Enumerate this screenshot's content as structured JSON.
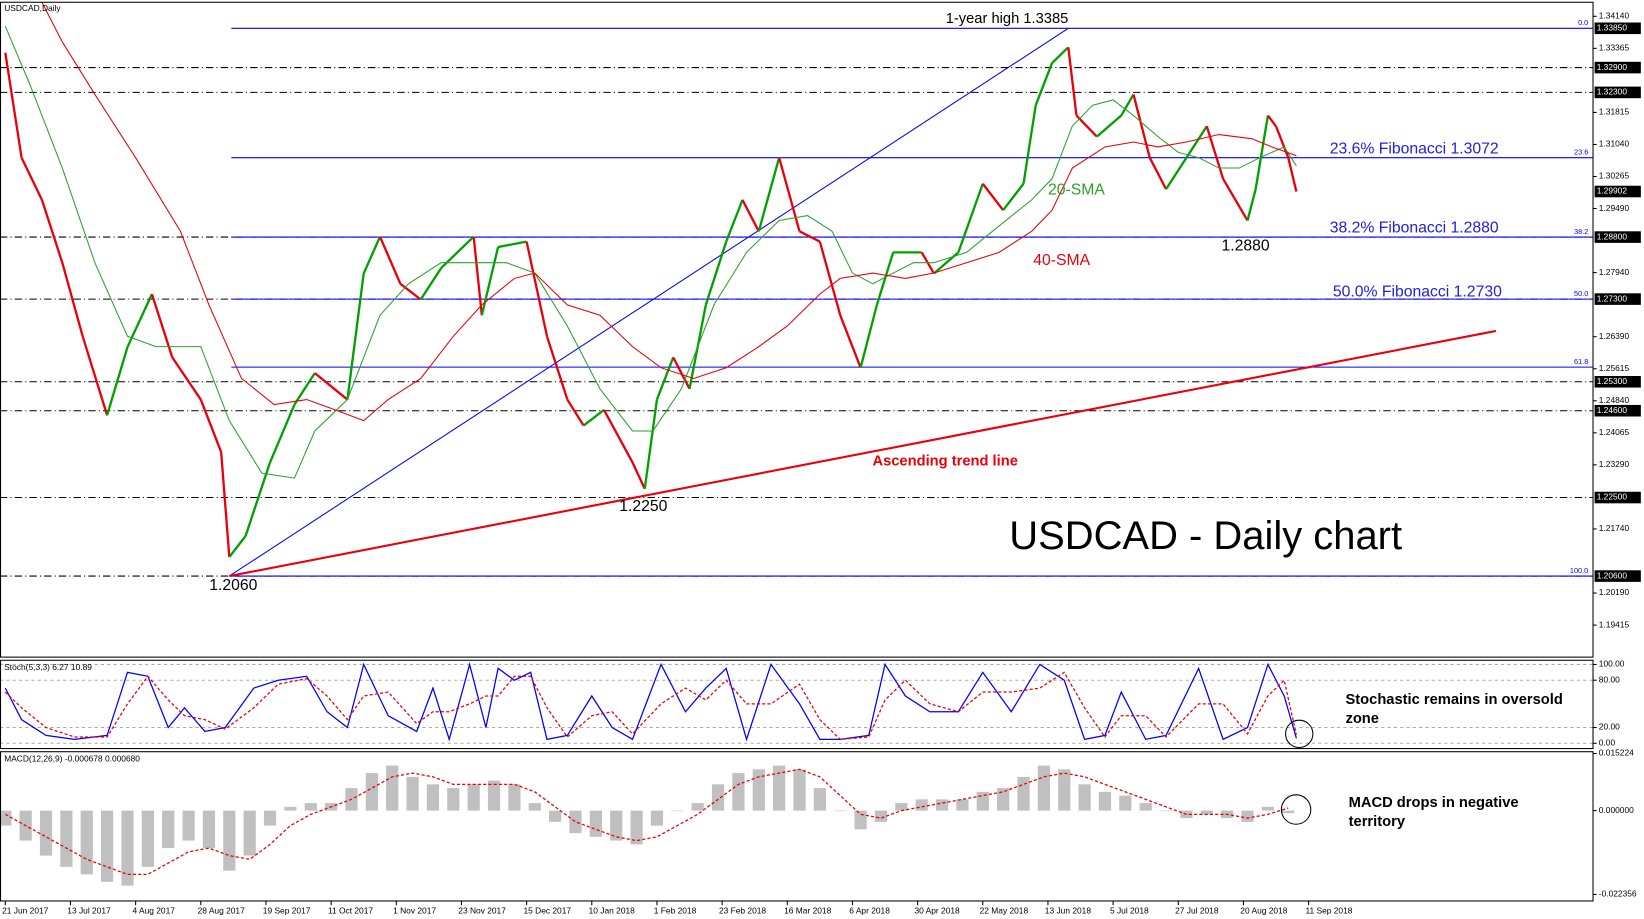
{
  "chart_data": [
    {
      "type": "price",
      "title": "USDCAD,Daily",
      "subtitle": "USDCAD - Daily chart",
      "xlim": [
        -1.3,
        389.7
      ],
      "ylim": [
        1.1864,
        1.3448
      ],
      "yticks": [
        {
          "value": 1.3414,
          "label": "1.34140"
        },
        {
          "value": 1.33365,
          "label": "1.33365"
        },
        {
          "value": 1.31815,
          "label": "1.31815"
        },
        {
          "value": 1.3104,
          "label": "1.31040"
        },
        {
          "value": 1.30265,
          "label": "1.30265"
        },
        {
          "value": 1.2949,
          "label": "1.29490"
        },
        {
          "value": 1.2794,
          "label": "1.27940"
        },
        {
          "value": 1.2639,
          "label": "1.26390"
        },
        {
          "value": 1.25615,
          "label": "1.25615"
        },
        {
          "value": 1.2484,
          "label": "1.24840"
        },
        {
          "value": 1.24065,
          "label": "1.24065"
        },
        {
          "value": 1.2329,
          "label": "1.23290"
        },
        {
          "value": 1.2174,
          "label": "1.21740"
        },
        {
          "value": 1.2019,
          "label": "1.20190"
        },
        {
          "value": 1.19415,
          "label": "1.19415"
        }
      ],
      "levels": [
        {
          "value": 1.3385,
          "label": "1.33850",
          "dashed": false
        },
        {
          "value": 1.329,
          "label": "1.32900",
          "dashed": true
        },
        {
          "value": 1.323,
          "label": "1.32300",
          "dashed": true
        },
        {
          "value": 1.29902,
          "label": "1.29902",
          "dashed": false
        },
        {
          "value": 1.288,
          "label": "1.28800",
          "dashed": true
        },
        {
          "value": 1.273,
          "label": "1.27300",
          "dashed": true
        },
        {
          "value": 1.253,
          "label": "1.25300",
          "dashed": true
        },
        {
          "value": 1.246,
          "label": "1.24600",
          "dashed": true
        },
        {
          "value": 1.225,
          "label": "1.22500",
          "dashed": true
        },
        {
          "value": 1.206,
          "label": "1.20600",
          "dashed": true
        }
      ],
      "fib": {
        "start": 55.5,
        "color": "#0000ff",
        "levels": [
          {
            "value": 1.3385,
            "label": "0.0"
          },
          {
            "value": 1.3072,
            "label": "23.6"
          },
          {
            "value": 1.288,
            "label": "38.2"
          },
          {
            "value": 1.273,
            "label": "50.0"
          },
          {
            "value": 1.25655,
            "label": "61.8"
          },
          {
            "value": 1.206,
            "label": "100.0"
          }
        ]
      },
      "lines": [
        {
          "color": "#0000ff",
          "x": [
            55,
            261
          ],
          "values": [
            1.206,
            1.3385
          ]
        },
        {
          "color": "#e8000b",
          "x": [
            55,
            366
          ],
          "values": [
            1.206,
            1.2653
          ]
        }
      ],
      "up_color": "#00a000",
      "down_color": "#e8000b",
      "x": [
        0,
        4,
        9,
        14,
        19,
        25,
        30,
        36,
        41,
        48,
        53,
        55,
        59,
        65,
        71,
        76,
        84,
        88,
        92,
        97,
        102,
        107,
        115,
        117,
        121,
        128,
        133,
        138,
        142,
        147,
        154,
        157,
        160,
        164,
        168,
        172,
        177,
        181,
        185,
        190,
        195,
        200,
        205,
        210,
        214,
        218,
        225,
        228,
        234,
        240,
        245,
        250,
        253,
        257,
        261,
        263,
        268,
        274,
        277,
        281,
        285,
        290,
        295,
        299,
        305,
        307,
        310,
        312,
        315,
        317
      ],
      "values": [
        1.3326,
        1.3072,
        1.297,
        1.2818,
        1.264,
        1.2449,
        1.2614,
        1.2742,
        1.2589,
        1.2487,
        1.236,
        1.2106,
        1.2157,
        1.2335,
        1.2475,
        1.2551,
        1.2487,
        1.2792,
        1.2881,
        1.2767,
        1.2729,
        1.2805,
        1.2881,
        1.2691,
        1.2856,
        1.2869,
        1.264,
        1.2487,
        1.2424,
        1.2462,
        1.2335,
        1.2271,
        1.2487,
        1.2589,
        1.2513,
        1.2716,
        1.2869,
        1.297,
        1.2894,
        1.3072,
        1.2894,
        1.2869,
        1.2691,
        1.2564,
        1.2716,
        1.2843,
        1.2843,
        1.2792,
        1.2843,
        1.3009,
        1.2945,
        1.3009,
        1.3199,
        1.3301,
        1.3339,
        1.3174,
        1.3123,
        1.3174,
        1.3225,
        1.3072,
        1.2996,
        1.3072,
        1.3148,
        1.3021,
        1.292,
        1.2996,
        1.3174,
        1.3148,
        1.3072,
        1.299
      ],
      "series": [
        {
          "name": "20-SMA",
          "color": "#2ca02c",
          "x": [
            0,
            6,
            14,
            22,
            30,
            37,
            48,
            55,
            63,
            71,
            76,
            84,
            92,
            99,
            107,
            115,
            123,
            130,
            138,
            146,
            154,
            159,
            166,
            174,
            182,
            190,
            197,
            203,
            208,
            213,
            218,
            223,
            228,
            236,
            244,
            252,
            257,
            262,
            267,
            272,
            277,
            283,
            288,
            293,
            298,
            303,
            308,
            314,
            317
          ],
          "values": [
            1.339,
            1.325,
            1.3047,
            1.2818,
            1.264,
            1.2615,
            1.2615,
            1.2436,
            1.2309,
            1.2297,
            1.2411,
            1.2487,
            1.2691,
            1.2767,
            1.2818,
            1.2818,
            1.2818,
            1.2793,
            1.2665,
            1.2513,
            1.2411,
            1.2411,
            1.2513,
            1.2716,
            1.2843,
            1.292,
            1.2932,
            1.2894,
            1.2793,
            1.2767,
            1.2793,
            1.2818,
            1.2818,
            1.2843,
            1.2907,
            1.297,
            1.3021,
            1.3149,
            1.3199,
            1.3212,
            1.3174,
            1.3123,
            1.3085,
            1.3072,
            1.3047,
            1.3047,
            1.3072,
            1.3098,
            1.3052
          ]
        },
        {
          "name": "40-SMA",
          "color": "#e8000b",
          "x": [
            9,
            14,
            22,
            32,
            43,
            50,
            58,
            66,
            74,
            81,
            88,
            94,
            102,
            110,
            117,
            125,
            130,
            138,
            146,
            154,
            161,
            169,
            177,
            185,
            192,
            200,
            205,
            213,
            221,
            228,
            236,
            244,
            252,
            257,
            262,
            270,
            277,
            283,
            290,
            298,
            306,
            311,
            317
          ],
          "values": [
            1.3448,
            1.3352,
            1.3225,
            1.3072,
            1.2894,
            1.2716,
            1.2538,
            1.2475,
            1.2487,
            1.2462,
            1.2436,
            1.2487,
            1.2538,
            1.264,
            1.2716,
            1.278,
            1.2793,
            1.2716,
            1.2691,
            1.2615,
            1.2564,
            1.2538,
            1.2564,
            1.2615,
            1.2665,
            1.2742,
            1.278,
            1.2793,
            1.278,
            1.2793,
            1.2818,
            1.2843,
            1.2894,
            1.2945,
            1.3047,
            1.3098,
            1.311,
            1.3098,
            1.311,
            1.3128,
            1.3118,
            1.3098,
            1.3077
          ]
        }
      ],
      "annotations": [
        "1-year high 1.3385",
        "23.6% Fibonacci 1.3072",
        "38.2% Fibonacci 1.2880",
        "50.0% Fibonacci 1.2730",
        "1.2880",
        "1.2250",
        "1.2060",
        "Ascending trend line"
      ]
    },
    {
      "type": "oscillator",
      "title": "Stoch(5,3,3) 6.27 10.89",
      "xlim": [
        -1.3,
        389.7
      ],
      "ylim": [
        -6.7,
        105.3
      ],
      "yticks": [
        {
          "value": 100,
          "label": "100.00"
        },
        {
          "value": 80,
          "label": "80.00"
        },
        {
          "value": 20,
          "label": "20.00"
        },
        {
          "value": 0,
          "label": "0.00"
        }
      ],
      "grid": true,
      "x": [
        0,
        4,
        10,
        17,
        25,
        30,
        35,
        40,
        44,
        49,
        54,
        61,
        67,
        74,
        79,
        84,
        88,
        94,
        101,
        105,
        109,
        114,
        118,
        121,
        125,
        129,
        133,
        138,
        144,
        149,
        154,
        161,
        167,
        172,
        177,
        182,
        188,
        195,
        200,
        205,
        212,
        216,
        221,
        227,
        234,
        240,
        247,
        254,
        260,
        265,
        270,
        274,
        280,
        285,
        293,
        299,
        305,
        310,
        314,
        317
      ],
      "series": [
        {
          "color": "#0000ff",
          "dashed": false,
          "values": [
            70,
            30,
            10,
            5,
            10,
            90,
            85,
            20,
            45,
            15,
            20,
            70,
            80,
            85,
            40,
            20,
            100,
            35,
            15,
            70,
            5,
            100,
            20,
            95,
            80,
            90,
            5,
            10,
            60,
            20,
            5,
            100,
            40,
            70,
            95,
            5,
            100,
            50,
            5,
            5,
            10,
            100,
            60,
            40,
            40,
            90,
            40,
            100,
            80,
            5,
            10,
            65,
            5,
            10,
            95,
            5,
            20,
            100,
            60,
            6.27
          ]
        },
        {
          "color": "#e8000b",
          "dashed": true,
          "values": [
            65,
            45,
            20,
            8,
            8,
            50,
            85,
            55,
            35,
            30,
            18,
            45,
            75,
            82,
            60,
            30,
            60,
            65,
            25,
            40,
            40,
            50,
            60,
            60,
            85,
            85,
            45,
            8,
            35,
            40,
            12,
            50,
            70,
            55,
            80,
            50,
            50,
            75,
            30,
            5,
            8,
            55,
            80,
            50,
            40,
            65,
            65,
            70,
            90,
            45,
            8,
            35,
            35,
            8,
            50,
            50,
            12,
            60,
            80,
            10.89
          ]
        }
      ],
      "annotation": [
        "Stochastic remains in oversold",
        "zone"
      ]
    },
    {
      "type": "macd",
      "title": "MACD(12,26,9) -0.000678 0.000680",
      "xlim": [
        -1.3,
        389.7
      ],
      "ylim": [
        -0.0241,
        0.0157
      ],
      "yticks": [
        0.015224,
        {
          "value": 0,
          "label": "0.000000"
        },
        -0.022356
      ],
      "xticks": [
        {
          "value": 0,
          "label": "21 Jun 2017"
        },
        {
          "value": 16,
          "label": "13 Jul 2017"
        },
        {
          "value": 32,
          "label": "4 Aug 2017"
        },
        {
          "value": 48,
          "label": "28 Aug 2017"
        },
        {
          "value": 64,
          "label": "19 Sep 2017"
        },
        {
          "value": 80,
          "label": "11 Oct 2017"
        },
        {
          "value": 96,
          "label": "1 Nov 2017"
        },
        {
          "value": 112,
          "label": "23 Nov 2017"
        },
        {
          "value": 128,
          "label": "15 Dec 2017"
        },
        {
          "value": 144,
          "label": "10 Jan 2018"
        },
        {
          "value": 160,
          "label": "1 Feb 2018"
        },
        {
          "value": 176,
          "label": "23 Feb 2018"
        },
        {
          "value": 192,
          "label": "16 Mar 2018"
        },
        {
          "value": 208,
          "label": "6 Apr 2018"
        },
        {
          "value": 224,
          "label": "30 Apr 2018"
        },
        {
          "value": 240,
          "label": "22 May 2018"
        },
        {
          "value": 256,
          "label": "13 Jun 2018"
        },
        {
          "value": 272,
          "label": "5 Jul 2018"
        },
        {
          "value": 288,
          "label": "27 Jul 2018"
        },
        {
          "value": 304,
          "label": "20 Aug 2018"
        },
        {
          "value": 320,
          "label": "11 Sep 2018"
        }
      ],
      "x": [
        0,
        5,
        10,
        15,
        20,
        25,
        30,
        35,
        40,
        45,
        50,
        55,
        60,
        65,
        70,
        75,
        80,
        85,
        90,
        95,
        100,
        105,
        110,
        115,
        120,
        125,
        130,
        135,
        140,
        145,
        150,
        155,
        160,
        165,
        170,
        175,
        180,
        185,
        190,
        195,
        200,
        205,
        210,
        215,
        220,
        225,
        230,
        235,
        240,
        245,
        250,
        255,
        260,
        265,
        270,
        275,
        280,
        285,
        290,
        295,
        300,
        305,
        310,
        315
      ],
      "histogram": {
        "color": "#c0c0c0",
        "values": [
          -0.004,
          -0.008,
          -0.012,
          -0.015,
          -0.017,
          -0.019,
          -0.02,
          -0.015,
          -0.01,
          -0.008,
          -0.01,
          -0.016,
          -0.012,
          -0.004,
          0.001,
          0.002,
          0.002,
          0.006,
          0.01,
          0.012,
          0.009,
          0.007,
          0.006,
          0.007,
          0.008,
          0.007,
          0.002,
          -0.003,
          -0.006,
          -0.007,
          -0.008,
          -0.009,
          -0.004,
          0,
          0.002,
          0.007,
          0.01,
          0.011,
          0.012,
          0.011,
          0.006,
          0,
          -0.005,
          -0.003,
          0.002,
          0.003,
          0.003,
          0.003,
          0.005,
          0.006,
          0.009,
          0.012,
          0.011,
          0.007,
          0.005,
          0.004,
          0.002,
          0,
          -0.002,
          -0.001,
          -0.002,
          -0.003,
          0.001,
          -0.000678
        ]
      },
      "signal": {
        "color": "#e8000b",
        "values": [
          -0.001,
          -0.004,
          -0.007,
          -0.01,
          -0.013,
          -0.015,
          -0.017,
          -0.017,
          -0.014,
          -0.011,
          -0.01,
          -0.012,
          -0.013,
          -0.009,
          -0.004,
          -0.001,
          0.001,
          0.003,
          0.006,
          0.009,
          0.01,
          0.009,
          0.007,
          0.007,
          0.007,
          0.007,
          0.005,
          0.001,
          -0.003,
          -0.005,
          -0.007,
          -0.008,
          -0.007,
          -0.004,
          -0.001,
          0.003,
          0.007,
          0.009,
          0.01,
          0.011,
          0.009,
          0.004,
          -0.001,
          -0.002,
          0,
          0.001,
          0.002,
          0.003,
          0.004,
          0.005,
          0.007,
          0.009,
          0.01,
          0.009,
          0.007,
          0.005,
          0.003,
          0.001,
          -0.001,
          -0.001,
          -0.001,
          -0.002,
          -0.001,
          0.00068
        ]
      },
      "annotation": [
        "MACD drops in negative",
        "territory"
      ]
    }
  ]
}
